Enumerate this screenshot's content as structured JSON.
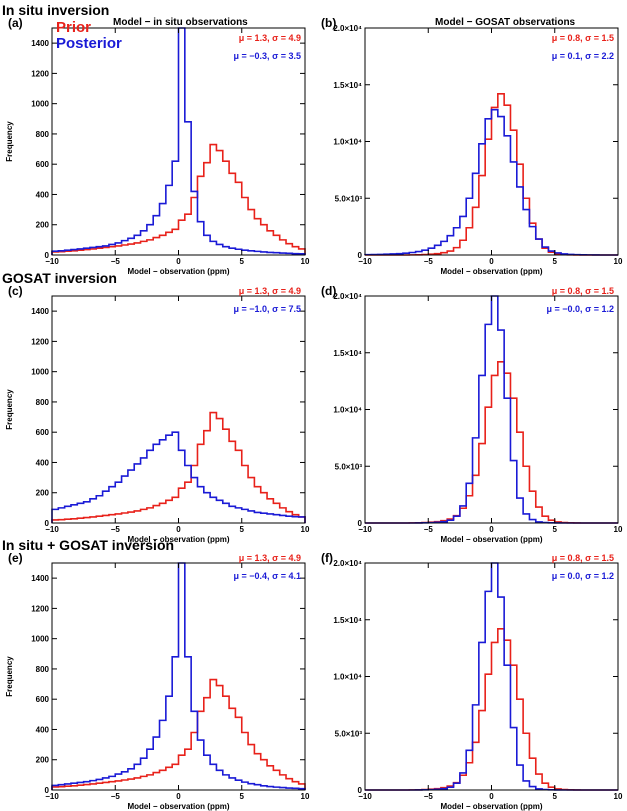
{
  "row_titles": [
    "In situ inversion",
    "GOSAT inversion",
    "In situ + GOSAT inversion"
  ],
  "column_titles": [
    "Model − in situ observations",
    "Model − GOSAT observations"
  ],
  "legend": {
    "prior": "Prior",
    "posterior": "Posterior"
  },
  "colors": {
    "prior": "#e8211a",
    "posterior": "#1a1ad6"
  },
  "chart_data": [
    {
      "type": "histogram",
      "panel": "(a)",
      "title": "Model − in situ observations",
      "xlabel": "Model − observation (ppm)",
      "ylabel": "Frequency",
      "xlim": [
        -10,
        10
      ],
      "ylim": [
        0,
        1500
      ],
      "xticks": [
        "−10",
        "−5",
        "0",
        "5",
        "10"
      ],
      "yticks": [
        "0",
        "200",
        "400",
        "600",
        "800",
        "1000",
        "1200",
        "1400"
      ],
      "bin_start": -10,
      "bin_width": 0.5,
      "series": [
        {
          "name": "Prior",
          "stat": "μ = 1.3, σ = 4.9",
          "values": [
            20,
            22,
            25,
            28,
            32,
            36,
            40,
            45,
            50,
            55,
            60,
            66,
            72,
            80,
            90,
            100,
            115,
            130,
            150,
            170,
            230,
            270,
            380,
            520,
            610,
            730,
            690,
            620,
            540,
            480,
            380,
            300,
            240,
            200,
            160,
            130,
            100,
            75,
            55,
            40
          ]
        },
        {
          "name": "Posterior",
          "stat": "μ = −0.3, σ = 3.5",
          "values": [
            25,
            28,
            32,
            36,
            40,
            45,
            50,
            55,
            60,
            70,
            80,
            95,
            110,
            130,
            160,
            200,
            260,
            340,
            460,
            620,
            1500,
            880,
            420,
            220,
            130,
            90,
            70,
            55,
            45,
            38,
            32,
            28,
            24,
            20,
            17,
            15,
            13,
            11,
            9,
            8
          ]
        }
      ]
    },
    {
      "type": "histogram",
      "panel": "(b)",
      "title": "Model − GOSAT observations",
      "xlabel": "Model − observation (ppm)",
      "ylabel": "",
      "xlim": [
        -10,
        10
      ],
      "ylim": [
        0,
        20000
      ],
      "xticks": [
        "−10",
        "−5",
        "0",
        "5",
        "10"
      ],
      "yticks": [
        "0",
        "5.0×10³",
        "1.0×10⁴",
        "1.5×10⁴",
        "2.0×10⁴"
      ],
      "bin_start": -10,
      "bin_width": 0.5,
      "series": [
        {
          "name": "Prior",
          "stat": "μ = 0.8, σ = 1.5",
          "values": [
            0,
            0,
            0,
            0,
            0,
            0,
            0,
            10,
            20,
            40,
            70,
            120,
            200,
            350,
            650,
            1300,
            2400,
            4200,
            7000,
            10200,
            13000,
            14200,
            13200,
            11000,
            8000,
            5000,
            2800,
            1400,
            600,
            250,
            100,
            40,
            15,
            5,
            0,
            0,
            0,
            0,
            0,
            0
          ]
        },
        {
          "name": "Posterior",
          "stat": "μ = 0.1, σ = 2.2",
          "values": [
            30,
            40,
            50,
            70,
            90,
            120,
            160,
            220,
            300,
            420,
            600,
            850,
            1200,
            1700,
            2400,
            3400,
            5000,
            7200,
            9800,
            12000,
            12800,
            12200,
            10500,
            8200,
            6000,
            4000,
            2500,
            1400,
            700,
            350,
            180,
            90,
            50,
            30,
            20,
            10,
            5,
            0,
            0,
            0
          ]
        }
      ]
    },
    {
      "type": "histogram",
      "panel": "(c)",
      "title": "",
      "xlabel": "Model − observation (ppm)",
      "ylabel": "Frequency",
      "xlim": [
        -10,
        10
      ],
      "ylim": [
        0,
        1500
      ],
      "xticks": [
        "−10",
        "−5",
        "0",
        "5",
        "10"
      ],
      "yticks": [
        "0",
        "200",
        "400",
        "600",
        "800",
        "1000",
        "1200",
        "1400"
      ],
      "bin_start": -10,
      "bin_width": 0.5,
      "series": [
        {
          "name": "Prior",
          "stat": "μ = 1.3, σ = 4.9",
          "values": [
            20,
            22,
            25,
            28,
            32,
            36,
            40,
            45,
            50,
            55,
            60,
            66,
            72,
            80,
            90,
            100,
            115,
            130,
            150,
            170,
            230,
            270,
            380,
            520,
            610,
            730,
            690,
            620,
            540,
            480,
            380,
            300,
            240,
            200,
            160,
            130,
            100,
            75,
            55,
            40
          ]
        },
        {
          "name": "Posterior",
          "stat": "μ = −1.0, σ = 7.5",
          "values": [
            90,
            100,
            110,
            120,
            130,
            140,
            160,
            180,
            210,
            240,
            270,
            310,
            350,
            390,
            430,
            480,
            520,
            550,
            580,
            600,
            480,
            380,
            300,
            240,
            200,
            170,
            150,
            130,
            110,
            100,
            90,
            80,
            70,
            65,
            60,
            55,
            50,
            45,
            42,
            40
          ]
        }
      ]
    },
    {
      "type": "histogram",
      "panel": "(d)",
      "title": "",
      "xlabel": "Model − observation (ppm)",
      "ylabel": "",
      "xlim": [
        -10,
        10
      ],
      "ylim": [
        0,
        20000
      ],
      "xticks": [
        "−10",
        "−5",
        "0",
        "5",
        "10"
      ],
      "yticks": [
        "0",
        "5.0×10³",
        "1.0×10⁴",
        "1.5×10⁴",
        "2.0×10⁴"
      ],
      "bin_start": -10,
      "bin_width": 0.5,
      "series": [
        {
          "name": "Prior",
          "stat": "μ = 0.8, σ = 1.5",
          "values": [
            0,
            0,
            0,
            0,
            0,
            0,
            0,
            10,
            20,
            40,
            70,
            120,
            200,
            350,
            650,
            1300,
            2400,
            4200,
            7000,
            10200,
            13000,
            14200,
            13200,
            11000,
            8000,
            5000,
            2800,
            1400,
            600,
            250,
            100,
            40,
            15,
            5,
            0,
            0,
            0,
            0,
            0,
            0
          ]
        },
        {
          "name": "Posterior",
          "stat": "μ = −0.0, σ = 1.2",
          "values": [
            0,
            0,
            0,
            0,
            0,
            0,
            0,
            0,
            5,
            15,
            30,
            60,
            120,
            250,
            600,
            1500,
            3500,
            7500,
            13000,
            17500,
            20000,
            17000,
            11000,
            5500,
            2200,
            800,
            300,
            100,
            40,
            15,
            5,
            0,
            0,
            0,
            0,
            0,
            0,
            0,
            0,
            0
          ]
        }
      ]
    },
    {
      "type": "histogram",
      "panel": "(e)",
      "title": "",
      "xlabel": "Model − observation (ppm)",
      "ylabel": "Frequency",
      "xlim": [
        -10,
        10
      ],
      "ylim": [
        0,
        1500
      ],
      "xticks": [
        "−10",
        "−5",
        "0",
        "5",
        "10"
      ],
      "yticks": [
        "0",
        "200",
        "400",
        "600",
        "800",
        "1000",
        "1200",
        "1400"
      ],
      "bin_start": -10,
      "bin_width": 0.5,
      "series": [
        {
          "name": "Prior",
          "stat": "μ = 1.3, σ = 4.9",
          "values": [
            20,
            22,
            25,
            28,
            32,
            36,
            40,
            45,
            50,
            55,
            60,
            66,
            72,
            80,
            90,
            100,
            115,
            130,
            150,
            170,
            230,
            270,
            380,
            520,
            610,
            730,
            690,
            620,
            540,
            480,
            380,
            300,
            240,
            200,
            160,
            130,
            100,
            75,
            55,
            40
          ]
        },
        {
          "name": "Posterior",
          "stat": "μ = −0.4, σ = 4.1",
          "values": [
            30,
            35,
            40,
            45,
            50,
            55,
            62,
            70,
            80,
            90,
            105,
            120,
            140,
            170,
            210,
            270,
            350,
            460,
            620,
            880,
            1500,
            880,
            520,
            330,
            230,
            170,
            130,
            100,
            80,
            65,
            52,
            42,
            35,
            28,
            23,
            19,
            16,
            13,
            11,
            9
          ]
        }
      ]
    },
    {
      "type": "histogram",
      "panel": "(f)",
      "title": "",
      "xlabel": "Model − observation (ppm)",
      "ylabel": "",
      "xlim": [
        -10,
        10
      ],
      "ylim": [
        0,
        20000
      ],
      "xticks": [
        "−10",
        "−5",
        "0",
        "5",
        "10"
      ],
      "yticks": [
        "0",
        "5.0×10³",
        "1.0×10⁴",
        "1.5×10⁴",
        "2.0×10⁴"
      ],
      "bin_start": -10,
      "bin_width": 0.5,
      "series": [
        {
          "name": "Prior",
          "stat": "μ = 0.8, σ = 1.5",
          "values": [
            0,
            0,
            0,
            0,
            0,
            0,
            0,
            10,
            20,
            40,
            70,
            120,
            200,
            350,
            650,
            1300,
            2400,
            4200,
            7000,
            10200,
            13000,
            14200,
            13200,
            11000,
            8000,
            5000,
            2800,
            1400,
            600,
            250,
            100,
            40,
            15,
            5,
            0,
            0,
            0,
            0,
            0,
            0
          ]
        },
        {
          "name": "Posterior",
          "stat": "μ = 0.0, σ = 1.2",
          "values": [
            0,
            0,
            0,
            0,
            0,
            0,
            0,
            0,
            5,
            15,
            30,
            60,
            120,
            250,
            600,
            1500,
            3500,
            7500,
            13000,
            17500,
            20000,
            17000,
            11000,
            5500,
            2200,
            800,
            300,
            100,
            40,
            15,
            5,
            0,
            0,
            0,
            0,
            0,
            0,
            0,
            0,
            0
          ]
        }
      ]
    }
  ]
}
